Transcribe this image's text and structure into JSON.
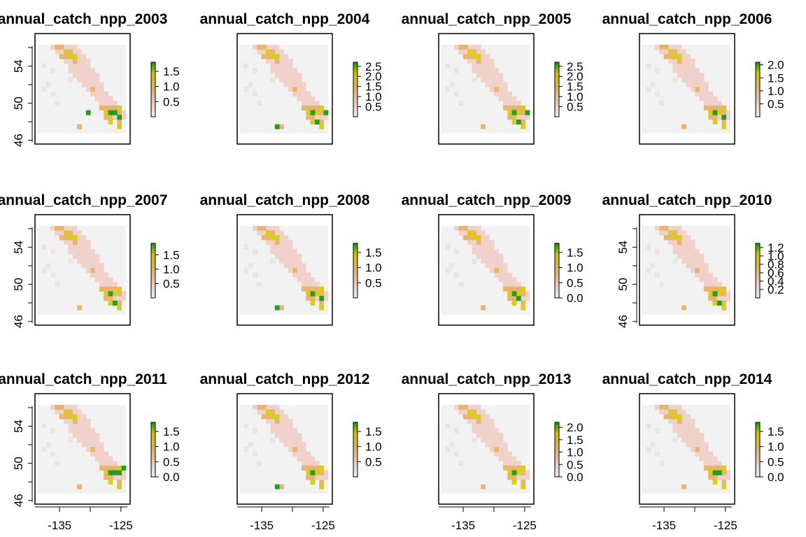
{
  "figure": {
    "x_ticks": [
      -135,
      -125
    ],
    "y_ticks": [
      46,
      50,
      54
    ],
    "xlim": [
      -139,
      -123.5
    ],
    "ylim": [
      45.6,
      56.3
    ]
  },
  "chart_data": [
    {
      "type": "heatmap",
      "title": "annual_catch_npp_2003",
      "legend_ticks": [
        "0.5",
        "1.0",
        "1.5"
      ],
      "legend_max": 1.8,
      "x_axis": false,
      "y_axis": true,
      "green_cells": [
        [
          16,
          14
        ],
        [
          18,
          15
        ],
        [
          17,
          14
        ],
        [
          11,
          14
        ]
      ]
    },
    {
      "type": "heatmap",
      "title": "annual_catch_npp_2004",
      "legend_ticks": [
        "0.5",
        "1.0",
        "1.5",
        "2.0",
        "2.5"
      ],
      "legend_max": 2.7,
      "x_axis": false,
      "y_axis": false,
      "green_cells": [
        [
          16,
          14
        ],
        [
          17,
          16
        ],
        [
          8,
          17
        ],
        [
          19,
          14
        ]
      ]
    },
    {
      "type": "heatmap",
      "title": "annual_catch_npp_2005",
      "legend_ticks": [
        "0.5",
        "1.0",
        "1.5",
        "2.0",
        "2.5"
      ],
      "legend_max": 2.7,
      "x_axis": false,
      "y_axis": false,
      "green_cells": [
        [
          16,
          14
        ],
        [
          17,
          16
        ],
        [
          19,
          14
        ]
      ]
    },
    {
      "type": "heatmap",
      "title": "annual_catch_npp_2006",
      "legend_ticks": [
        "0.5",
        "1.0",
        "1.5",
        "2.0"
      ],
      "legend_max": 2.1,
      "x_axis": false,
      "y_axis": false,
      "green_cells": [
        [
          16,
          14
        ],
        [
          18,
          15
        ]
      ]
    },
    {
      "type": "heatmap",
      "title": "annual_catch_npp_2007",
      "legend_ticks": [
        "0.5",
        "1.0",
        "1.5"
      ],
      "legend_max": 1.9,
      "x_axis": false,
      "y_axis": true,
      "green_cells": [
        [
          16,
          14
        ],
        [
          17,
          16
        ]
      ]
    },
    {
      "type": "heatmap",
      "title": "annual_catch_npp_2008",
      "legend_ticks": [
        "0.5",
        "1.0",
        "1.5"
      ],
      "legend_max": 1.8,
      "x_axis": false,
      "y_axis": false,
      "green_cells": [
        [
          16,
          14
        ],
        [
          8,
          17
        ],
        [
          18,
          15
        ]
      ]
    },
    {
      "type": "heatmap",
      "title": "annual_catch_npp_2009",
      "legend_ticks": [
        "0.0",
        "0.5",
        "1.0",
        "1.5"
      ],
      "legend_max": 1.8,
      "x_axis": false,
      "y_axis": false,
      "green_cells": [
        [
          16,
          14
        ],
        [
          17,
          15
        ]
      ]
    },
    {
      "type": "heatmap",
      "title": "annual_catch_npp_2010",
      "legend_ticks": [
        "0.2",
        "0.4",
        "0.6",
        "0.8",
        "1.0",
        "1.2"
      ],
      "legend_max": 1.3,
      "x_axis": false,
      "y_axis": true,
      "green_cells": [
        [
          16,
          14
        ],
        [
          17,
          16
        ]
      ]
    },
    {
      "type": "heatmap",
      "title": "annual_catch_npp_2011",
      "legend_ticks": [
        "0.0",
        "0.5",
        "1.0",
        "1.5"
      ],
      "legend_max": 1.8,
      "x_axis": true,
      "y_axis": true,
      "green_cells": [
        [
          16,
          14
        ],
        [
          17,
          14
        ],
        [
          18,
          14
        ],
        [
          19,
          13
        ]
      ]
    },
    {
      "type": "heatmap",
      "title": "annual_catch_npp_2012",
      "legend_ticks": [
        "0.5",
        "1.0",
        "1.5"
      ],
      "legend_max": 1.8,
      "x_axis": true,
      "y_axis": false,
      "green_cells": [
        [
          16,
          14
        ],
        [
          8,
          17
        ]
      ]
    },
    {
      "type": "heatmap",
      "title": "annual_catch_npp_2013",
      "legend_ticks": [
        "0.0",
        "0.5",
        "1.0",
        "1.5",
        "2.0"
      ],
      "legend_max": 2.2,
      "x_axis": true,
      "y_axis": false,
      "green_cells": [
        [
          16,
          14
        ]
      ]
    },
    {
      "type": "heatmap",
      "title": "annual_catch_npp_2014",
      "legend_ticks": [
        "0.0",
        "0.5",
        "1.0",
        "1.5"
      ],
      "legend_max": 1.8,
      "x_axis": true,
      "y_axis": false,
      "green_cells": [
        [
          16,
          14
        ],
        [
          17,
          14
        ]
      ]
    }
  ]
}
